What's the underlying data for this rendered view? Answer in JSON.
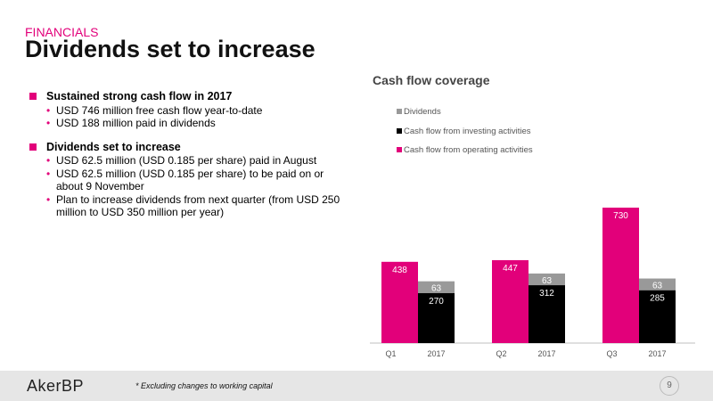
{
  "header": {
    "kicker": "FINANCIALS",
    "title": "Dividends set to increase"
  },
  "bullets": [
    {
      "heading": "Sustained strong cash flow in 2017",
      "items": [
        "USD 746 million free cash flow year-to-date",
        "USD 188 million paid in dividends"
      ]
    },
    {
      "heading": "Dividends set to increase",
      "items": [
        "USD 62.5 million (USD 0.185 per share) paid in August",
        "USD 62.5 million (USD 0.185 per share) to be paid on or about 9 November",
        "Plan to increase dividends from next quarter (from USD 250 million to USD 350 million per year)"
      ]
    }
  ],
  "chart_data": {
    "type": "bar",
    "title": "Cash flow coverage",
    "categories": [
      "Q1 2017",
      "Q2 2017",
      "Q3 2017"
    ],
    "category_labels": [
      [
        "Q1",
        "2017"
      ],
      [
        "Q2",
        "2017"
      ],
      [
        "Q3",
        "2017"
      ]
    ],
    "series": [
      {
        "name": "Cash flow from operating activities",
        "color": "#e2007a",
        "values": [
          438,
          447,
          730
        ]
      },
      {
        "name": "Cash flow from investing activities",
        "color": "#000000",
        "values": [
          270,
          312,
          285
        ]
      },
      {
        "name": "Dividends",
        "color": "#999999",
        "values": [
          63,
          63,
          63
        ]
      }
    ],
    "stacked_groups": [
      [
        "Cash flow from operating activities"
      ],
      [
        "Cash flow from investing activities",
        "Dividends"
      ]
    ],
    "legend_order": [
      "Dividends",
      "Cash flow from investing activities",
      "Cash flow from operating activities"
    ],
    "legend_position": "top-left",
    "ylim": [
      0,
      800
    ],
    "grid": false
  },
  "footer": {
    "logo": "AkerBP",
    "footnote": "* Excluding changes to working capital",
    "page_number": "9"
  }
}
